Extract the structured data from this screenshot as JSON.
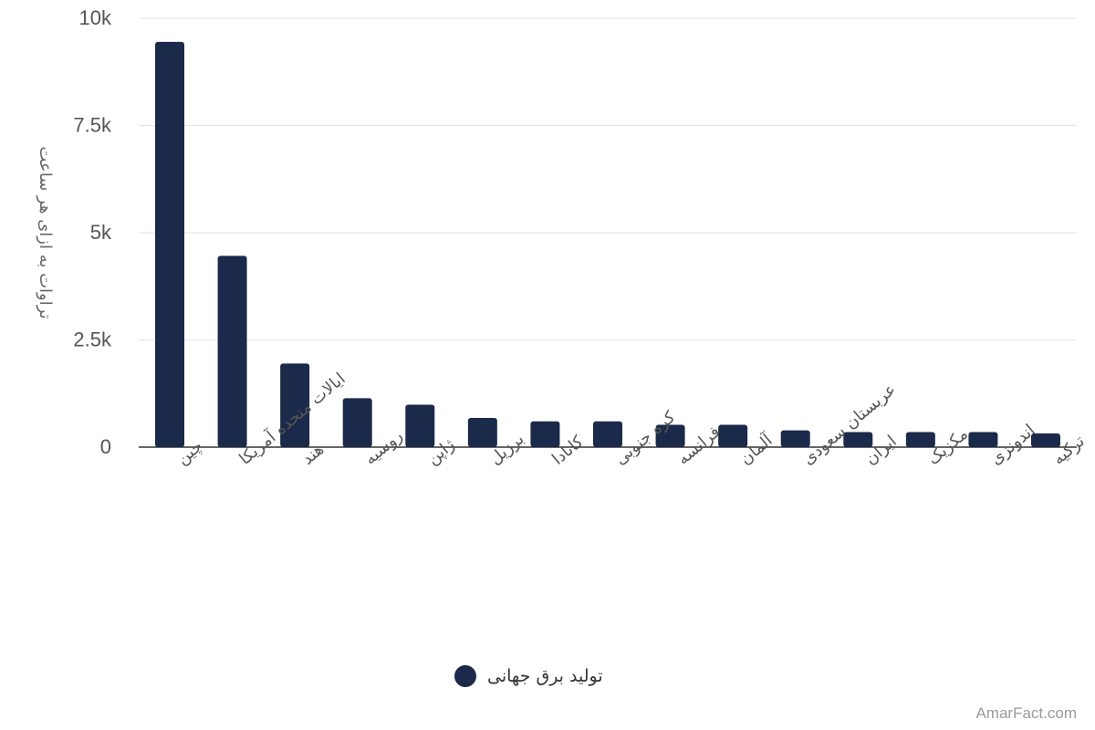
{
  "chart_data": {
    "type": "bar",
    "ylabel": "تراوات به ازای هر ساعت",
    "xlabel": "",
    "ylim": [
      0,
      10000
    ],
    "yticks": [
      {
        "value": 0,
        "label": "0"
      },
      {
        "value": 2500,
        "label": "2.5k"
      },
      {
        "value": 5000,
        "label": "5k"
      },
      {
        "value": 7500,
        "label": "7.5k"
      },
      {
        "value": 10000,
        "label": "10k"
      }
    ],
    "grid": true,
    "legend_position": "bottom",
    "categories": [
      "چین",
      "ایالات متحده آمریکا",
      "هند",
      "روسیه",
      "ژاپن",
      "برزیل",
      "کانادا",
      "کره جنوبی",
      "فرانسه",
      "آلمان",
      "عربستان سعودی",
      "ایران",
      "مکزیک",
      "اندونزی",
      "ترکیه"
    ],
    "series": [
      {
        "name": "تولید برق جهانی",
        "color": "#1b2a4a",
        "values": [
          9450,
          4460,
          1950,
          1140,
          990,
          680,
          600,
          600,
          520,
          520,
          390,
          350,
          350,
          350,
          320
        ]
      }
    ]
  },
  "watermark": "AmarFact.com"
}
